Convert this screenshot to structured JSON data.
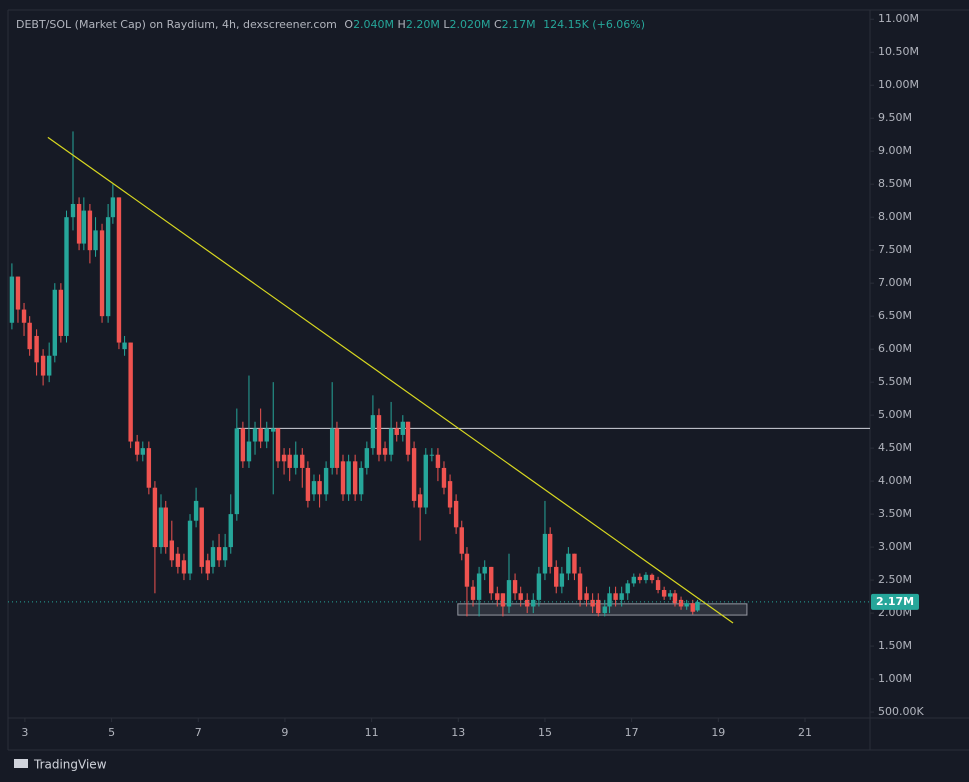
{
  "header": {
    "title": "DEBT/SOL (Market Cap) on Raydium, 4h, dexscreener.com",
    "ohlc": [
      {
        "key": "O",
        "value": "2.040M"
      },
      {
        "key": "H",
        "value": "2.20M"
      },
      {
        "key": "L",
        "value": "2.020M"
      },
      {
        "key": "C",
        "value": "2.17M"
      }
    ],
    "change": "124.15K (+6.06%)"
  },
  "footer": {
    "brand": "TradingView"
  },
  "chart_data": {
    "type": "candlestick",
    "up_color": "#26a69a",
    "down_color": "#ef5350",
    "x": [
      2.7,
      2.84,
      2.98,
      3.11,
      3.27,
      3.42,
      3.56,
      3.69,
      3.83,
      3.96,
      4.11,
      4.25,
      4.36,
      4.5,
      4.63,
      4.78,
      4.92,
      5.03,
      5.17,
      5.3,
      5.44,
      5.59,
      5.72,
      5.86,
      6.0,
      6.14,
      6.25,
      6.39,
      6.53,
      6.67,
      6.81,
      6.95,
      7.08,
      7.22,
      7.34,
      7.48,
      7.62,
      7.75,
      7.89,
      8.03,
      8.17,
      8.31,
      8.44,
      8.58,
      8.73,
      8.84,
      8.98,
      9.11,
      9.25,
      9.4,
      9.53,
      9.67,
      9.8,
      9.95,
      10.09,
      10.2,
      10.34,
      10.47,
      10.62,
      10.76,
      10.89,
      11.03,
      11.17,
      11.31,
      11.45,
      11.58,
      11.72,
      11.84,
      11.98,
      12.12,
      12.25,
      12.39,
      12.53,
      12.67,
      12.81,
      12.95,
      13.08,
      13.2,
      13.34,
      13.48,
      13.61,
      13.76,
      13.9,
      14.03,
      14.17,
      14.31,
      14.44,
      14.59,
      14.73,
      14.86,
      15.0,
      15.12,
      15.26,
      15.39,
      15.54,
      15.68,
      15.81,
      15.96,
      16.1,
      16.23,
      16.38,
      16.49,
      16.63,
      16.77,
      16.91,
      17.05,
      17.19,
      17.33,
      17.47,
      17.61,
      17.75,
      17.89,
      18.0,
      18.14,
      18.27,
      18.41,
      18.52
    ],
    "open": [
      6.4,
      7.1,
      6.6,
      6.4,
      6.2,
      5.9,
      5.6,
      5.9,
      6.9,
      6.2,
      8.0,
      8.2,
      7.6,
      8.1,
      7.5,
      7.8,
      6.5,
      8.0,
      8.3,
      6.0,
      6.1,
      4.6,
      4.4,
      4.5,
      3.9,
      3.0,
      3.6,
      3.1,
      2.9,
      2.8,
      2.6,
      3.4,
      3.6,
      2.8,
      2.7,
      3.0,
      2.8,
      3.0,
      3.5,
      4.8,
      4.3,
      4.6,
      4.8,
      4.6,
      4.75,
      4.8,
      4.4,
      4.4,
      4.2,
      4.4,
      4.2,
      3.8,
      4.0,
      3.8,
      4.2,
      4.8,
      4.3,
      3.8,
      4.3,
      3.8,
      4.2,
      4.5,
      5.0,
      4.5,
      4.4,
      4.8,
      4.7,
      4.9,
      4.5,
      3.8,
      3.6,
      4.4,
      4.4,
      4.2,
      4.0,
      3.7,
      3.3,
      2.9,
      2.4,
      2.2,
      2.6,
      2.7,
      2.3,
      2.3,
      2.1,
      2.5,
      2.3,
      2.2,
      2.1,
      2.2,
      2.6,
      3.2,
      2.7,
      2.4,
      2.6,
      2.9,
      2.6,
      2.3,
      2.2,
      2.2,
      2.0,
      2.1,
      2.3,
      2.2,
      2.3,
      2.45,
      2.55,
      2.5,
      2.58,
      2.5,
      2.35,
      2.25,
      2.3,
      2.2,
      2.1,
      2.15,
      2.04
    ],
    "high": [
      7.3,
      7.1,
      6.7,
      6.5,
      6.3,
      6.0,
      6.1,
      7.0,
      7.0,
      8.1,
      9.3,
      8.3,
      8.3,
      8.2,
      8.0,
      7.9,
      8.2,
      8.5,
      8.3,
      6.2,
      6.1,
      4.7,
      4.6,
      4.6,
      4.0,
      3.8,
      3.7,
      3.4,
      3.0,
      2.9,
      3.5,
      3.9,
      3.6,
      2.9,
      3.1,
      3.2,
      3.2,
      3.8,
      5.1,
      4.9,
      5.6,
      4.9,
      5.1,
      4.9,
      5.5,
      4.8,
      4.5,
      4.5,
      4.6,
      4.5,
      4.3,
      4.1,
      4.1,
      4.3,
      5.5,
      4.9,
      4.4,
      4.4,
      4.4,
      4.3,
      4.6,
      5.3,
      5.1,
      4.6,
      5.2,
      4.9,
      5.0,
      4.9,
      4.6,
      3.9,
      4.5,
      4.5,
      4.5,
      4.3,
      4.1,
      3.8,
      3.4,
      3.0,
      2.5,
      2.7,
      2.8,
      2.7,
      2.4,
      2.3,
      2.9,
      2.6,
      2.4,
      2.3,
      2.3,
      2.7,
      3.7,
      3.3,
      2.8,
      2.7,
      3.0,
      2.9,
      2.7,
      2.4,
      2.3,
      2.3,
      2.2,
      2.4,
      2.4,
      2.4,
      2.5,
      2.6,
      2.6,
      2.62,
      2.6,
      2.55,
      2.4,
      2.35,
      2.35,
      2.25,
      2.2,
      2.2,
      2.2
    ],
    "low": [
      6.3,
      6.4,
      6.2,
      5.9,
      5.6,
      5.45,
      5.5,
      5.8,
      6.1,
      6.1,
      7.8,
      7.5,
      7.5,
      7.3,
      7.4,
      6.4,
      6.4,
      7.9,
      6.0,
      5.9,
      4.5,
      4.3,
      4.3,
      3.8,
      2.3,
      2.9,
      2.9,
      2.7,
      2.6,
      2.5,
      2.5,
      3.3,
      2.6,
      2.5,
      2.6,
      2.7,
      2.7,
      2.9,
      3.4,
      4.2,
      4.2,
      4.4,
      4.5,
      4.5,
      3.8,
      4.2,
      4.1,
      4.0,
      4.1,
      3.9,
      3.6,
      3.7,
      3.6,
      3.7,
      4.1,
      4.1,
      3.7,
      3.7,
      3.7,
      3.7,
      4.1,
      4.4,
      4.3,
      4.3,
      4.3,
      4.6,
      4.6,
      4.3,
      3.6,
      3.1,
      3.5,
      4.3,
      4.0,
      3.8,
      3.5,
      3.2,
      2.8,
      1.95,
      2.1,
      1.95,
      2.5,
      2.2,
      2.1,
      1.95,
      2.0,
      2.2,
      2.1,
      2.0,
      2.0,
      2.1,
      2.5,
      2.6,
      2.3,
      2.3,
      2.5,
      2.5,
      2.1,
      2.1,
      2.0,
      1.95,
      1.95,
      2.0,
      2.1,
      2.1,
      2.2,
      2.4,
      2.45,
      2.45,
      2.45,
      2.3,
      2.2,
      2.2,
      2.1,
      2.05,
      2.05,
      1.98,
      2.02
    ],
    "close": [
      7.1,
      6.6,
      6.4,
      6.0,
      5.8,
      5.6,
      5.9,
      6.9,
      6.2,
      8.0,
      8.2,
      7.6,
      8.1,
      7.5,
      7.8,
      6.5,
      8.0,
      8.3,
      6.1,
      6.1,
      4.6,
      4.4,
      4.5,
      3.9,
      3.0,
      3.6,
      3.0,
      2.8,
      2.7,
      2.6,
      3.4,
      3.7,
      2.7,
      2.6,
      3.0,
      2.8,
      3.0,
      3.5,
      4.8,
      4.3,
      4.6,
      4.8,
      4.6,
      4.8,
      4.8,
      4.3,
      4.3,
      4.2,
      4.4,
      4.2,
      3.7,
      4.0,
      3.8,
      4.2,
      4.8,
      4.2,
      3.8,
      4.3,
      3.8,
      4.2,
      4.5,
      5.0,
      4.4,
      4.4,
      4.8,
      4.7,
      4.9,
      4.4,
      3.7,
      3.6,
      4.4,
      4.4,
      4.2,
      3.9,
      3.6,
      3.3,
      2.9,
      2.4,
      2.2,
      2.6,
      2.7,
      2.3,
      2.2,
      2.1,
      2.5,
      2.3,
      2.2,
      2.1,
      2.2,
      2.6,
      3.2,
      2.7,
      2.4,
      2.6,
      2.9,
      2.6,
      2.2,
      2.2,
      2.1,
      2.0,
      2.1,
      2.3,
      2.2,
      2.3,
      2.45,
      2.55,
      2.5,
      2.58,
      2.5,
      2.35,
      2.25,
      2.3,
      2.15,
      2.1,
      2.15,
      2.02,
      2.17
    ],
    "xlim": [
      2.61,
      22.5
    ],
    "xticks": [
      3,
      5,
      7,
      9,
      11,
      13,
      15,
      17,
      19,
      21
    ],
    "ylim": [
      0.41,
      11.14
    ],
    "yticks": [
      {
        "value": 11,
        "label": "11.00M"
      },
      {
        "value": 10.5,
        "label": "10.50M"
      },
      {
        "value": 10,
        "label": "10.00M"
      },
      {
        "value": 9.5,
        "label": "9.50M"
      },
      {
        "value": 9,
        "label": "9.00M"
      },
      {
        "value": 8.5,
        "label": "8.50M"
      },
      {
        "value": 8,
        "label": "8.00M"
      },
      {
        "value": 7.5,
        "label": "7.50M"
      },
      {
        "value": 7,
        "label": "7.00M"
      },
      {
        "value": 6.5,
        "label": "6.50M"
      },
      {
        "value": 6,
        "label": "6.00M"
      },
      {
        "value": 5.5,
        "label": "5.50M"
      },
      {
        "value": 5,
        "label": "5.00M"
      },
      {
        "value": 4.5,
        "label": "4.50M"
      },
      {
        "value": 4,
        "label": "4.00M"
      },
      {
        "value": 3.5,
        "label": "3.50M"
      },
      {
        "value": 3,
        "label": "3.00M"
      },
      {
        "value": 2.5,
        "label": "2.50M"
      },
      {
        "value": 2,
        "label": "2.00M"
      },
      {
        "value": 1.5,
        "label": "1.50M"
      },
      {
        "value": 1,
        "label": "1.00M"
      },
      {
        "value": 0.5,
        "label": "500.00K"
      }
    ],
    "last_price": 2.17,
    "last_price_label": "2.17M",
    "hline": {
      "y": 4.8,
      "x0": 7.89
    },
    "trendline": {
      "x": [
        3.53,
        19.34
      ],
      "y": [
        9.21,
        1.85
      ],
      "color": "#d8d820"
    },
    "zone": {
      "x": [
        12.99,
        19.66
      ],
      "y": [
        1.97,
        2.14
      ]
    }
  }
}
